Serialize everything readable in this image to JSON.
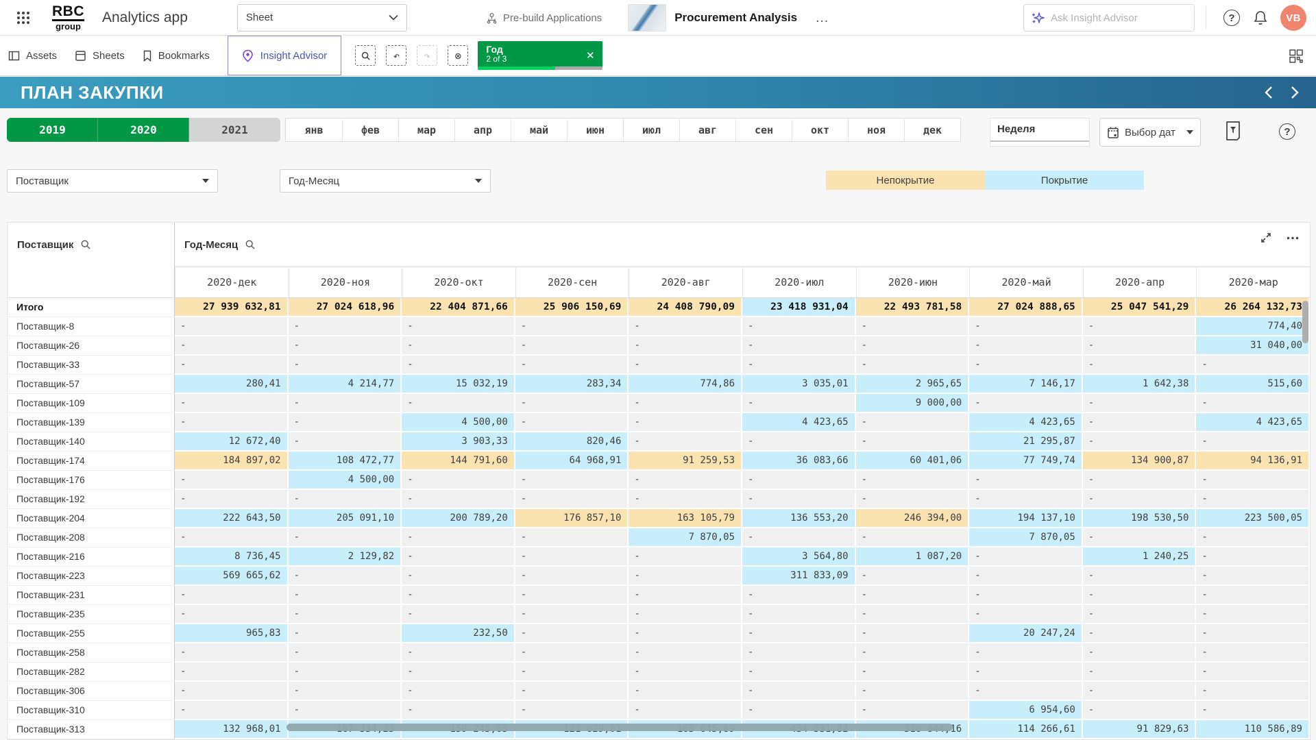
{
  "app_bar": {
    "brand_top": "RBC",
    "brand_bottom": "group",
    "app_title": "Analytics app",
    "sheet_selector_label": "Sheet",
    "prebuilt_label": "Pre-build Applications",
    "app_name": "Procurement Analysis",
    "more_label": "…",
    "ask_placeholder": "Ask Insight Advisor",
    "avatar_initials": "VB"
  },
  "toolbar": {
    "tabs": [
      {
        "label": "Assets"
      },
      {
        "label": "Sheets"
      },
      {
        "label": "Bookmarks"
      },
      {
        "label": "Insight Advisor"
      }
    ],
    "selection_chip": {
      "field": "Год",
      "state": "2 of 3",
      "progress": 0.62,
      "close_label": "✕"
    }
  },
  "sheet": {
    "title": "ПЛАН ЗАКУПКИ"
  },
  "filters": {
    "years": [
      {
        "label": "2019",
        "selected": true
      },
      {
        "label": "2020",
        "selected": true
      },
      {
        "label": "2021",
        "selected": false
      }
    ],
    "months": [
      "янв",
      "фев",
      "мар",
      "апр",
      "май",
      "июн",
      "июл",
      "авг",
      "сен",
      "окт",
      "ноя",
      "дек"
    ],
    "week_label": "Неделя",
    "date_picker_label": "Выбор дат"
  },
  "dropdowns": {
    "supplier": "Поставщик",
    "yearmonth": "Год-Месяц"
  },
  "legend": {
    "uncovered": "Непокрытие",
    "covered": "Покрытие",
    "uncovered_color": "#fbe2b1",
    "covered_color": "#c8edfb"
  },
  "colors": {
    "selected_green": "#009845",
    "avatar": "#f0846f"
  },
  "pivot": {
    "row_dim": "Поставщик",
    "col_dim": "Год-Месяц",
    "columns": [
      "2020-дек",
      "2020-ноя",
      "2020-окт",
      "2020-сен",
      "2020-авг",
      "2020-июл",
      "2020-июн",
      "2020-май",
      "2020-апр",
      "2020-мар"
    ],
    "total": {
      "label": "Итого",
      "cells": [
        [
          "27 939 632,81",
          "o"
        ],
        [
          "27 024 618,96",
          "o"
        ],
        [
          "22 404 871,66",
          "o"
        ],
        [
          "25 906 150,69",
          "o"
        ],
        [
          "24 408 790,09",
          "o"
        ],
        [
          "23 418 931,04",
          "b"
        ],
        [
          "22 493 781,58",
          "o"
        ],
        [
          "27 024 888,65",
          "o"
        ],
        [
          "25 047 541,29",
          "o"
        ],
        [
          "26 264 132,73",
          "o"
        ]
      ]
    },
    "rows": [
      {
        "label": "Поставщик-8",
        "cells": [
          [
            "-",
            "g"
          ],
          [
            "-",
            "g"
          ],
          [
            "-",
            "g"
          ],
          [
            "-",
            "g"
          ],
          [
            "-",
            "g"
          ],
          [
            "-",
            "g"
          ],
          [
            "-",
            "g"
          ],
          [
            "-",
            "g"
          ],
          [
            "-",
            "g"
          ],
          [
            "774,40",
            "b"
          ]
        ]
      },
      {
        "label": "Поставщик-26",
        "cells": [
          [
            "-",
            "g"
          ],
          [
            "-",
            "g"
          ],
          [
            "-",
            "g"
          ],
          [
            "-",
            "g"
          ],
          [
            "-",
            "g"
          ],
          [
            "-",
            "g"
          ],
          [
            "-",
            "g"
          ],
          [
            "-",
            "g"
          ],
          [
            "-",
            "g"
          ],
          [
            "31 040,00",
            "b"
          ]
        ]
      },
      {
        "label": "Поставщик-33",
        "cells": [
          [
            "-",
            "g"
          ],
          [
            "-",
            "g"
          ],
          [
            "-",
            "g"
          ],
          [
            "-",
            "g"
          ],
          [
            "-",
            "g"
          ],
          [
            "-",
            "g"
          ],
          [
            "-",
            "g"
          ],
          [
            "-",
            "g"
          ],
          [
            "-",
            "g"
          ],
          [
            "-",
            "g"
          ]
        ]
      },
      {
        "label": "Поставщик-57",
        "cells": [
          [
            "280,41",
            "b"
          ],
          [
            "4 214,77",
            "b"
          ],
          [
            "15 032,19",
            "b"
          ],
          [
            "283,34",
            "b"
          ],
          [
            "774,86",
            "b"
          ],
          [
            "3 035,01",
            "b"
          ],
          [
            "2 965,65",
            "b"
          ],
          [
            "7 146,17",
            "b"
          ],
          [
            "1 642,38",
            "b"
          ],
          [
            "515,60",
            "b"
          ]
        ]
      },
      {
        "label": "Поставщик-109",
        "cells": [
          [
            "-",
            "g"
          ],
          [
            "-",
            "g"
          ],
          [
            "-",
            "g"
          ],
          [
            "-",
            "g"
          ],
          [
            "-",
            "g"
          ],
          [
            "-",
            "g"
          ],
          [
            "9 000,00",
            "b"
          ],
          [
            "-",
            "g"
          ],
          [
            "-",
            "g"
          ],
          [
            "-",
            "g"
          ]
        ]
      },
      {
        "label": "Поставщик-139",
        "cells": [
          [
            "-",
            "g"
          ],
          [
            "-",
            "g"
          ],
          [
            "4 500,00",
            "b"
          ],
          [
            "-",
            "g"
          ],
          [
            "-",
            "g"
          ],
          [
            "4 423,65",
            "b"
          ],
          [
            "-",
            "g"
          ],
          [
            "4 423,65",
            "b"
          ],
          [
            "-",
            "g"
          ],
          [
            "4 423,65",
            "b"
          ]
        ]
      },
      {
        "label": "Поставщик-140",
        "cells": [
          [
            "12 672,40",
            "b"
          ],
          [
            "-",
            "g"
          ],
          [
            "3 903,33",
            "b"
          ],
          [
            "820,46",
            "b"
          ],
          [
            "-",
            "g"
          ],
          [
            "-",
            "g"
          ],
          [
            "-",
            "g"
          ],
          [
            "21 295,87",
            "b"
          ],
          [
            "-",
            "g"
          ],
          [
            "-",
            "g"
          ]
        ]
      },
      {
        "label": "Поставщик-174",
        "cells": [
          [
            "184 897,02",
            "o"
          ],
          [
            "108 472,77",
            "b"
          ],
          [
            "144 791,60",
            "o"
          ],
          [
            "64 968,91",
            "b"
          ],
          [
            "91 259,53",
            "o"
          ],
          [
            "36 083,66",
            "b"
          ],
          [
            "60 401,06",
            "b"
          ],
          [
            "77 749,74",
            "b"
          ],
          [
            "134 900,87",
            "o"
          ],
          [
            "94 136,91",
            "o"
          ]
        ]
      },
      {
        "label": "Поставщик-176",
        "cells": [
          [
            "-",
            "g"
          ],
          [
            "4 500,00",
            "b"
          ],
          [
            "-",
            "g"
          ],
          [
            "-",
            "g"
          ],
          [
            "-",
            "g"
          ],
          [
            "-",
            "g"
          ],
          [
            "-",
            "g"
          ],
          [
            "-",
            "g"
          ],
          [
            "-",
            "g"
          ],
          [
            "-",
            "g"
          ]
        ]
      },
      {
        "label": "Поставщик-192",
        "cells": [
          [
            "-",
            "g"
          ],
          [
            "-",
            "g"
          ],
          [
            "-",
            "g"
          ],
          [
            "-",
            "g"
          ],
          [
            "-",
            "g"
          ],
          [
            "-",
            "g"
          ],
          [
            "-",
            "g"
          ],
          [
            "-",
            "g"
          ],
          [
            "-",
            "g"
          ],
          [
            "-",
            "g"
          ]
        ]
      },
      {
        "label": "Поставщик-204",
        "cells": [
          [
            "222 643,50",
            "b"
          ],
          [
            "205 091,10",
            "b"
          ],
          [
            "200 789,20",
            "b"
          ],
          [
            "176 857,10",
            "o"
          ],
          [
            "163 105,79",
            "o"
          ],
          [
            "136 553,20",
            "b"
          ],
          [
            "246 394,00",
            "o"
          ],
          [
            "194 137,10",
            "b"
          ],
          [
            "198 530,50",
            "b"
          ],
          [
            "223 500,05",
            "b"
          ]
        ]
      },
      {
        "label": "Поставщик-208",
        "cells": [
          [
            "-",
            "g"
          ],
          [
            "-",
            "g"
          ],
          [
            "-",
            "g"
          ],
          [
            "-",
            "g"
          ],
          [
            "7 870,05",
            "b"
          ],
          [
            "-",
            "g"
          ],
          [
            "-",
            "g"
          ],
          [
            "7 870,05",
            "b"
          ],
          [
            "-",
            "g"
          ],
          [
            "-",
            "g"
          ]
        ]
      },
      {
        "label": "Поставщик-216",
        "cells": [
          [
            "8 736,45",
            "b"
          ],
          [
            "2 129,82",
            "b"
          ],
          [
            "-",
            "g"
          ],
          [
            "-",
            "g"
          ],
          [
            "-",
            "g"
          ],
          [
            "3 564,80",
            "b"
          ],
          [
            "1 087,20",
            "b"
          ],
          [
            "-",
            "g"
          ],
          [
            "1 240,25",
            "b"
          ],
          [
            "-",
            "g"
          ]
        ]
      },
      {
        "label": "Поставщик-223",
        "cells": [
          [
            "569 665,62",
            "b"
          ],
          [
            "-",
            "g"
          ],
          [
            "-",
            "g"
          ],
          [
            "-",
            "g"
          ],
          [
            "-",
            "g"
          ],
          [
            "311 833,09",
            "b"
          ],
          [
            "-",
            "g"
          ],
          [
            "-",
            "g"
          ],
          [
            "-",
            "g"
          ],
          [
            "-",
            "g"
          ]
        ]
      },
      {
        "label": "Поставщик-231",
        "cells": [
          [
            "-",
            "g"
          ],
          [
            "-",
            "g"
          ],
          [
            "-",
            "g"
          ],
          [
            "-",
            "g"
          ],
          [
            "-",
            "g"
          ],
          [
            "-",
            "g"
          ],
          [
            "-",
            "g"
          ],
          [
            "-",
            "g"
          ],
          [
            "-",
            "g"
          ],
          [
            "-",
            "g"
          ]
        ]
      },
      {
        "label": "Поставщик-235",
        "cells": [
          [
            "-",
            "g"
          ],
          [
            "-",
            "g"
          ],
          [
            "-",
            "g"
          ],
          [
            "-",
            "g"
          ],
          [
            "-",
            "g"
          ],
          [
            "-",
            "g"
          ],
          [
            "-",
            "g"
          ],
          [
            "-",
            "g"
          ],
          [
            "-",
            "g"
          ],
          [
            "-",
            "g"
          ]
        ]
      },
      {
        "label": "Поставщик-255",
        "cells": [
          [
            "965,83",
            "b"
          ],
          [
            "-",
            "g"
          ],
          [
            "232,50",
            "b"
          ],
          [
            "-",
            "g"
          ],
          [
            "-",
            "g"
          ],
          [
            "-",
            "g"
          ],
          [
            "-",
            "g"
          ],
          [
            "20 247,24",
            "b"
          ],
          [
            "-",
            "g"
          ],
          [
            "-",
            "g"
          ]
        ]
      },
      {
        "label": "Поставщик-258",
        "cells": [
          [
            "-",
            "g"
          ],
          [
            "-",
            "g"
          ],
          [
            "-",
            "g"
          ],
          [
            "-",
            "g"
          ],
          [
            "-",
            "g"
          ],
          [
            "-",
            "g"
          ],
          [
            "-",
            "g"
          ],
          [
            "-",
            "g"
          ],
          [
            "-",
            "g"
          ],
          [
            "-",
            "g"
          ]
        ]
      },
      {
        "label": "Поставщик-282",
        "cells": [
          [
            "-",
            "g"
          ],
          [
            "-",
            "g"
          ],
          [
            "-",
            "g"
          ],
          [
            "-",
            "g"
          ],
          [
            "-",
            "g"
          ],
          [
            "-",
            "g"
          ],
          [
            "-",
            "g"
          ],
          [
            "-",
            "g"
          ],
          [
            "-",
            "g"
          ],
          [
            "-",
            "g"
          ]
        ]
      },
      {
        "label": "Поставщик-306",
        "cells": [
          [
            "-",
            "g"
          ],
          [
            "-",
            "g"
          ],
          [
            "-",
            "g"
          ],
          [
            "-",
            "g"
          ],
          [
            "-",
            "g"
          ],
          [
            "-",
            "g"
          ],
          [
            "-",
            "g"
          ],
          [
            "-",
            "g"
          ],
          [
            "-",
            "g"
          ],
          [
            "-",
            "g"
          ]
        ]
      },
      {
        "label": "Поставщик-310",
        "cells": [
          [
            "-",
            "g"
          ],
          [
            "-",
            "g"
          ],
          [
            "-",
            "g"
          ],
          [
            "-",
            "g"
          ],
          [
            "-",
            "g"
          ],
          [
            "-",
            "g"
          ],
          [
            "-",
            "g"
          ],
          [
            "6 954,60",
            "b"
          ],
          [
            "-",
            "g"
          ],
          [
            "-",
            "g"
          ]
        ]
      },
      {
        "label": "Поставщик-313",
        "cells": [
          [
            "132 968,01",
            "b"
          ],
          [
            "167 334,23",
            "b"
          ],
          [
            "159 245,63",
            "b"
          ],
          [
            "121 629,01",
            "b"
          ],
          [
            "163 645,89",
            "b"
          ],
          [
            "434 531,82",
            "b"
          ],
          [
            "316 844,16",
            "b"
          ],
          [
            "114 266,61",
            "b"
          ],
          [
            "91 829,63",
            "b"
          ],
          [
            "110 586,89",
            "b"
          ]
        ]
      }
    ]
  }
}
